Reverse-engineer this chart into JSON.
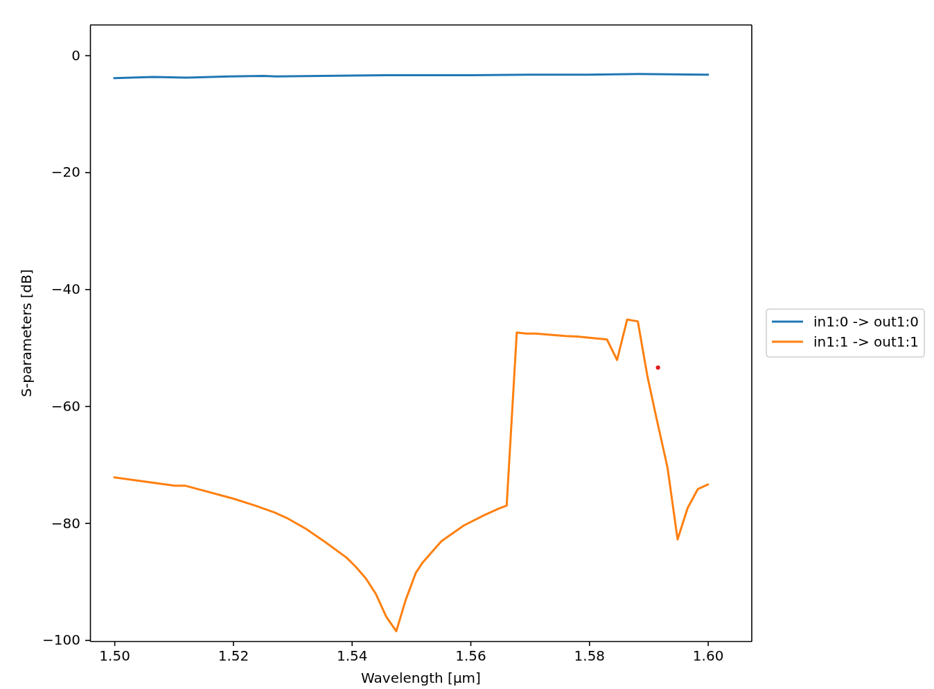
{
  "chart_data": {
    "type": "line",
    "xlabel": "Wavelength [μm]",
    "ylabel": "S-parameters [dB]",
    "xlim": [
      1.4959,
      1.6074
    ],
    "ylim": [
      -100.2,
      5.2
    ],
    "xticks": [
      {
        "value": 1.5,
        "label": "1.50"
      },
      {
        "value": 1.52,
        "label": "1.52"
      },
      {
        "value": 1.54,
        "label": "1.54"
      },
      {
        "value": 1.56,
        "label": "1.56"
      },
      {
        "value": 1.58,
        "label": "1.58"
      },
      {
        "value": 1.6,
        "label": "1.60"
      }
    ],
    "yticks": [
      {
        "value": -100,
        "label": "−100"
      },
      {
        "value": -80,
        "label": "−80"
      },
      {
        "value": -60,
        "label": "−60"
      },
      {
        "value": -40,
        "label": "−40"
      },
      {
        "value": -20,
        "label": "−20"
      },
      0
    ],
    "legend": "right",
    "series": [
      {
        "name": "in1:0 -> out1:0",
        "color": "#1f77b4",
        "x": [
          1.5,
          1.5066,
          1.5123,
          1.5194,
          1.5251,
          1.5272,
          1.5457,
          1.5599,
          1.5705,
          1.5798,
          1.5883,
          1.6
        ],
        "values": [
          -3.9,
          -3.7,
          -3.8,
          -3.6,
          -3.5,
          -3.6,
          -3.4,
          -3.4,
          -3.3,
          -3.3,
          -3.2,
          -3.3
        ]
      },
      {
        "name": "in1:1 -> out1:1",
        "color": "#ff7f0e",
        "x": [
          1.5,
          1.5102,
          1.5119,
          1.52,
          1.5237,
          1.527,
          1.529,
          1.5323,
          1.5356,
          1.5391,
          1.5406,
          1.5424,
          1.5441,
          1.5458,
          1.5475,
          1.5491,
          1.5508,
          1.5519,
          1.5551,
          1.5589,
          1.5624,
          1.5648,
          1.5661,
          1.5678,
          1.5694,
          1.571,
          1.576,
          1.578,
          1.583,
          1.5847,
          1.5864,
          1.5882,
          1.5898,
          1.5912,
          1.5932,
          1.5949,
          1.5966,
          1.5983,
          1.6
        ],
        "values": [
          -72.2,
          -73.6,
          -73.6,
          -75.8,
          -77.0,
          -78.2,
          -79.1,
          -81.0,
          -83.3,
          -85.9,
          -87.4,
          -89.5,
          -92.2,
          -96.0,
          -98.5,
          -93.1,
          -88.5,
          -86.8,
          -83.1,
          -80.4,
          -78.6,
          -77.5,
          -77.0,
          -47.4,
          -47.6,
          -47.6,
          -48.0,
          -48.1,
          -48.6,
          -52.1,
          -45.2,
          -45.5,
          -54.8,
          -61.4,
          -70.5,
          -82.8,
          -77.4,
          -74.2,
          -73.4
        ]
      },
      {
        "type": "scatter",
        "marker": "circle",
        "color": "#e41a1c",
        "x": [
          1.5916
        ],
        "values": [
          -53.4
        ]
      }
    ]
  }
}
